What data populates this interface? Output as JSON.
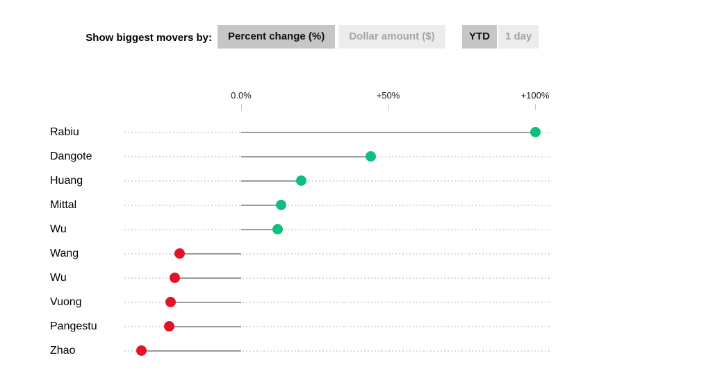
{
  "controls": {
    "label": "Show biggest movers by:",
    "metric_options": [
      {
        "label": "Percent change (%)",
        "active": true
      },
      {
        "label": "Dollar amount ($)",
        "active": false
      }
    ],
    "period_options": [
      {
        "label": "YTD",
        "active": true
      },
      {
        "label": "1 day",
        "active": false
      }
    ]
  },
  "chart_data": {
    "type": "scatter",
    "variant": "horizontal lollipop dot plot of biggest movers",
    "title": "",
    "xlabel": "",
    "ylabel": "",
    "units": "%",
    "categories": [
      "Rabiu",
      "Dangote",
      "Huang",
      "Mittal",
      "Wu",
      "Wang",
      "Wu",
      "Vuong",
      "Pangestu",
      "Zhao"
    ],
    "values": [
      100,
      44,
      20.5,
      13.5,
      12.5,
      -21,
      -22.5,
      -24,
      -24.5,
      -34
    ],
    "x_ticks": [
      {
        "value": 0,
        "label": "0.0%"
      },
      {
        "value": 50,
        "label": "+50%"
      },
      {
        "value": 100,
        "label": "+100%"
      }
    ],
    "xlim": [
      -40,
      105
    ],
    "grid": false,
    "legend": "none",
    "colors": {
      "positive_dot": "#10bf7e",
      "negative_dot": "#e01327",
      "solid_line": "#9a9a9a",
      "dotted_track": "#d8d8d8",
      "tick_mark": "#c8c8c8",
      "active_button_bg": "#c6c6c6",
      "active_button_text": "#111111",
      "inactive_button_bg": "#ececec",
      "inactive_button_text": "#a6a6a6"
    }
  }
}
